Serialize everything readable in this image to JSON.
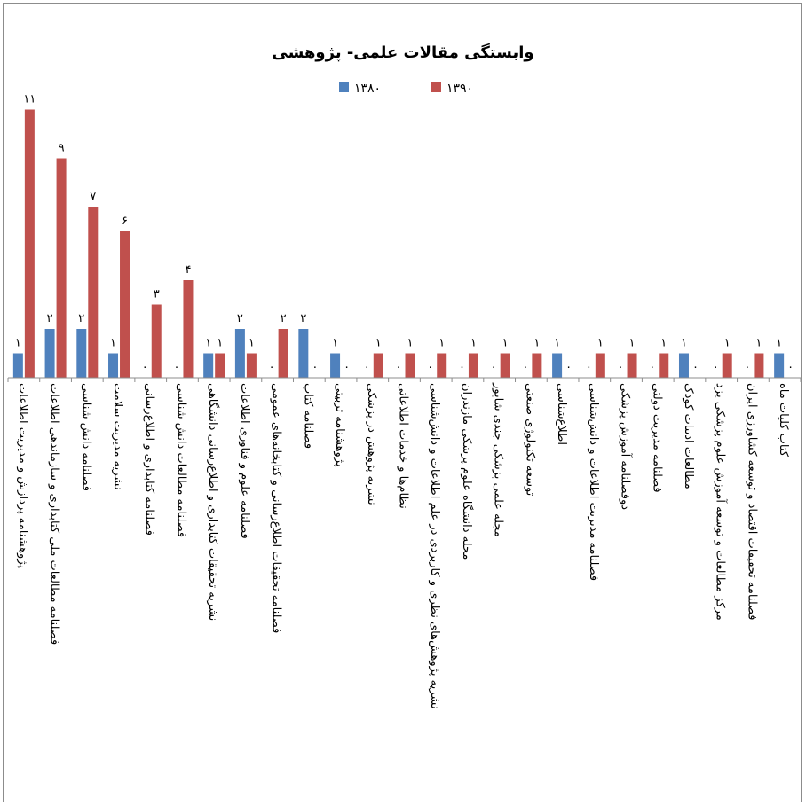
{
  "chart_data": {
    "type": "bar",
    "title": "وابستگی مقالات علمی- پژوهشی",
    "legend_position": "top-center",
    "ylim": [
      0,
      12
    ],
    "grid": false,
    "series": [
      {
        "name": "۱۳۸۰",
        "color": "#4F81BD",
        "values": [
          1,
          2,
          2,
          1,
          0,
          0,
          1,
          2,
          0,
          2,
          1,
          0,
          0,
          0,
          0,
          0,
          0,
          1,
          0,
          0,
          0,
          1,
          0,
          0,
          1
        ],
        "labels": [
          "۱",
          "۲",
          "۲",
          "۱",
          "۰",
          "۰",
          "۱",
          "۲",
          "۰",
          "۲",
          "۱",
          "۰",
          "۰",
          "۰",
          "۰",
          "۰",
          "۰",
          "۱",
          "۰",
          "۰",
          "۰",
          "۱",
          "۰",
          "۰",
          "۱"
        ]
      },
      {
        "name": "۱۳۹۰",
        "color": "#C0504D",
        "values": [
          11,
          9,
          7,
          6,
          3,
          4,
          1,
          1,
          2,
          0,
          0,
          1,
          1,
          1,
          1,
          1,
          1,
          0,
          1,
          1,
          1,
          0,
          1,
          1,
          0
        ],
        "labels": [
          "۱۱",
          "۹",
          "۷",
          "۶",
          "۳",
          "۴",
          "۱",
          "۱",
          "۲",
          "۰",
          "۰",
          "۱",
          "۱",
          "۱",
          "۱",
          "۱",
          "۱",
          "۰",
          "۱",
          "۱",
          "۱",
          "۰",
          "۱",
          "۱",
          "۰"
        ]
      }
    ],
    "categories": [
      [
        "پژوهشنامه پردازش و مدیریت اطلاعات"
      ],
      [
        "فصلنامه مطالعات ملی کتابداری و سازماندهی اطلاعات"
      ],
      [
        "فصلنامه دانش شناسی"
      ],
      [
        "نشریه مدیریت سلامت"
      ],
      [
        "فصلنامه کتابداری و اطلاع‌رسانی"
      ],
      [
        "فصلنامه مطالعات دانش شناسی"
      ],
      [
        "نشریه تحقیقات کتابداری و اطلاع‌رسانی دانشگاهی"
      ],
      [
        "فصلنامه علوم و فناوری اطلاعات"
      ],
      [
        "فصلنامه تحقیقات اطلاع‌رسانی و کتابخانه‌های عمومی"
      ],
      [
        "فصلنامه کتاب"
      ],
      [
        "پژوهشنامه تربیتی"
      ],
      [
        "نشریه پژوهش در پزشکی"
      ],
      [
        "نظام‌ها و خدمات اطلاعاتی"
      ],
      [
        "نشریه پژوهش‌های نظری و کاربردی در علم اطلاعات و دانش‌شناسی"
      ],
      [
        "مجله دانشگاه علوم پزشکی مازندران"
      ],
      [
        "مجله علمی پزشکی جندی شاپور"
      ],
      [
        "توسعه تکنولوژی صنعتی"
      ],
      [
        "اطلاع‌شناسی"
      ],
      [
        "فصلنامه مدیریت اطلاعات و دانش‌شناسی"
      ],
      [
        "دوفصلنامه آموزش پزشکی"
      ],
      [
        "فصلنامه مدیریت دولتی"
      ],
      [
        "مطالعات ادبیات کودک"
      ],
      [
        "مرکز مطالعات و توسعه آموزش علوم پزشکی یزد"
      ],
      [
        "فصلنامه تحقیقات اقتصاد و توسعه کشاورزی ایران"
      ],
      [
        "کتاب کلیات ماه"
      ]
    ]
  }
}
